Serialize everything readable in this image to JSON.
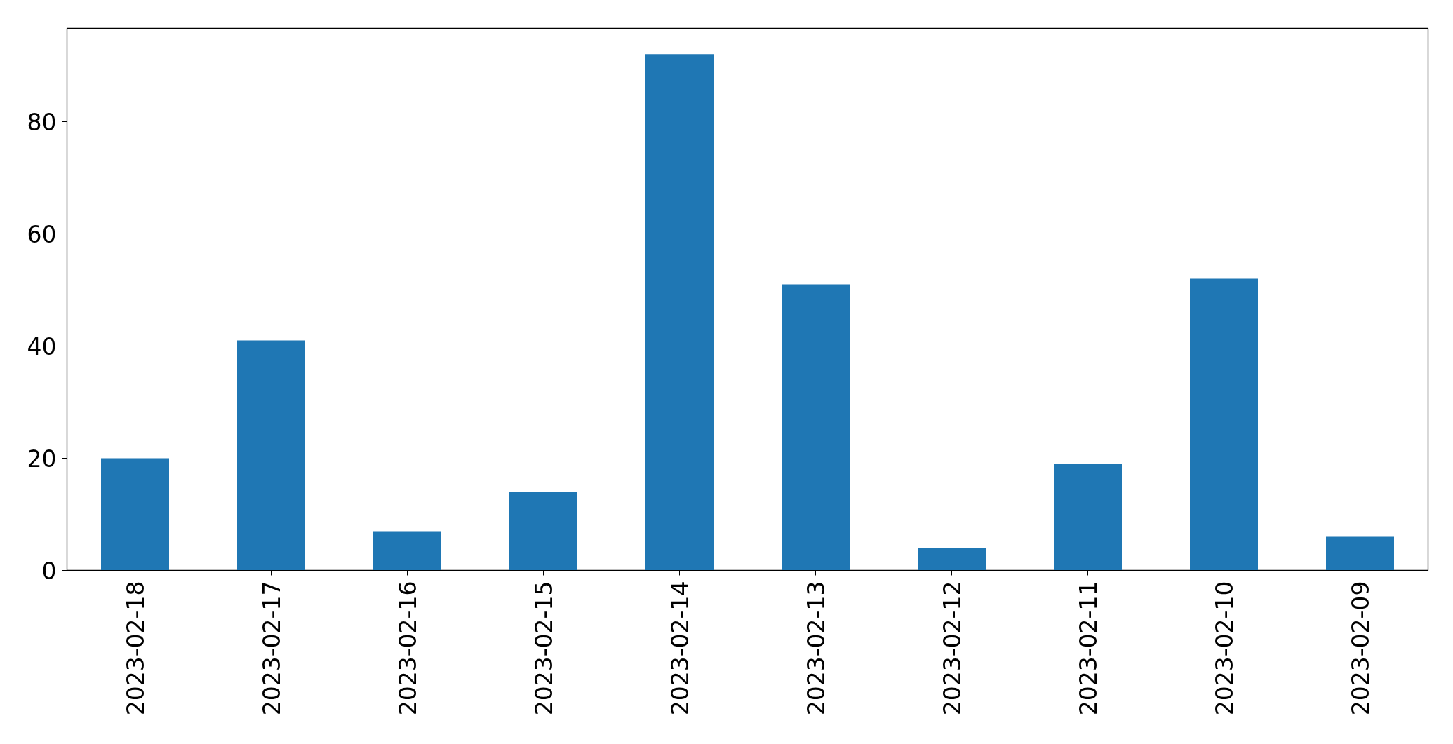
{
  "chart_data": {
    "type": "bar",
    "categories": [
      "2023-02-18",
      "2023-02-17",
      "2023-02-16",
      "2023-02-15",
      "2023-02-14",
      "2023-02-13",
      "2023-02-12",
      "2023-02-11",
      "2023-02-10",
      "2023-02-09"
    ],
    "values": [
      20,
      41,
      7,
      14,
      92,
      51,
      4,
      19,
      52,
      6
    ],
    "color": "#1f77b4",
    "ylim": [
      0,
      96.6
    ],
    "yticks": [
      0,
      20,
      40,
      60,
      80
    ]
  }
}
